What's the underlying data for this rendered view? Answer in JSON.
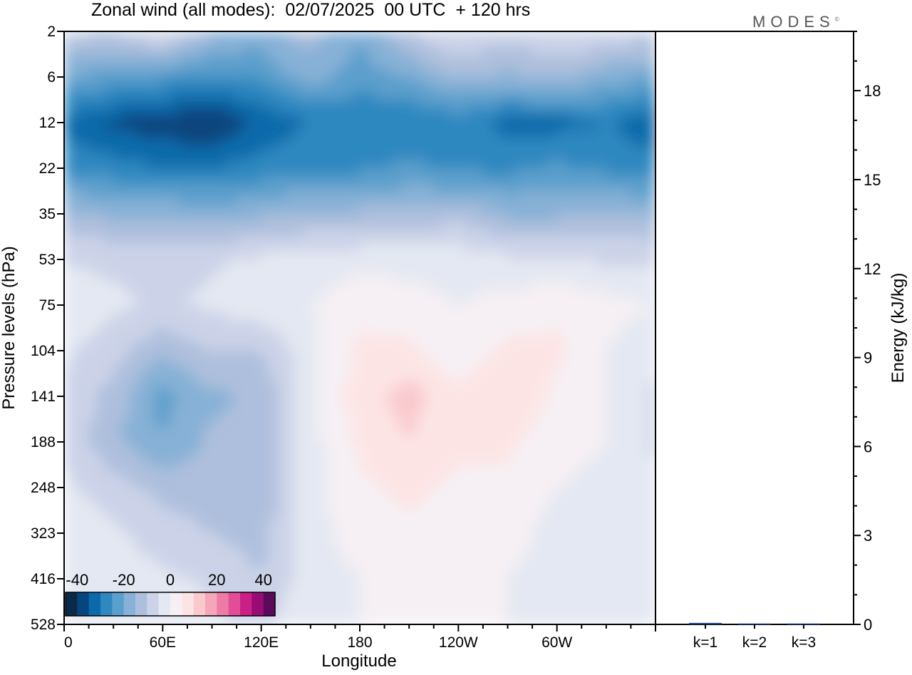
{
  "brand": "MODES",
  "chart_data": [
    {
      "type": "heatmap",
      "title": "Zonal wind (all modes):  02/07/2025  00 UTC  + 120 hrs",
      "xlabel": "Longitude",
      "ylabel": "Pressure levels (hPa)",
      "x_ticks": [
        "0",
        "60E",
        "120E",
        "180",
        "120W",
        "60W"
      ],
      "y_levels": [
        2,
        6,
        12,
        22,
        35,
        53,
        75,
        104,
        141,
        188,
        248,
        323,
        416,
        528
      ],
      "colorbar": {
        "tick_labels": [
          "-40",
          "-20",
          "0",
          "20",
          "40"
        ],
        "range": [
          -45,
          45
        ],
        "colors": [
          "#0b2a4a",
          "#08457e",
          "#0a6aaa",
          "#2f88c0",
          "#5b9fcc",
          "#87b1d6",
          "#aebfdd",
          "#ccd3e8",
          "#e4e8f2",
          "#f6f0f4",
          "#fde4e4",
          "#f9c9ce",
          "#f4a6ba",
          "#ee7ba6",
          "#e34d98",
          "#c91f86",
          "#9a0c75",
          "#5c0b5c"
        ]
      },
      "z_sample": {
        "levels_hPa": [
          2,
          6,
          12,
          22,
          35,
          53,
          75,
          104,
          141,
          188,
          248,
          323,
          416,
          528
        ],
        "longitudes_deg_east": [
          0,
          30,
          60,
          90,
          120,
          150,
          180,
          210,
          240,
          270,
          300,
          330,
          360
        ],
        "zonal_wind_m_s": [
          [
            -8,
            -10,
            -4,
            -14,
            -18,
            -12,
            -20,
            -10,
            -4,
            -8,
            -4,
            -6,
            -8
          ],
          [
            -20,
            -22,
            -24,
            -26,
            -24,
            -18,
            -22,
            -20,
            -14,
            -16,
            -14,
            -18,
            -20
          ],
          [
            -32,
            -36,
            -38,
            -40,
            -34,
            -30,
            -30,
            -30,
            -28,
            -32,
            -32,
            -30,
            -34
          ],
          [
            -26,
            -28,
            -30,
            -30,
            -28,
            -26,
            -26,
            -24,
            -26,
            -26,
            -24,
            -26,
            -28
          ],
          [
            -14,
            -16,
            -16,
            -18,
            -16,
            -14,
            -14,
            -14,
            -12,
            -16,
            -16,
            -14,
            -16
          ],
          [
            -6,
            -6,
            -6,
            -6,
            -4,
            -4,
            -2,
            -2,
            -2,
            -4,
            -4,
            -6,
            -6
          ],
          [
            0,
            -4,
            -6,
            -4,
            -2,
            0,
            4,
            2,
            0,
            2,
            4,
            2,
            0
          ],
          [
            -4,
            -8,
            -14,
            -10,
            -10,
            -2,
            6,
            6,
            2,
            6,
            6,
            0,
            -4
          ],
          [
            -6,
            -12,
            -22,
            -16,
            -14,
            -2,
            8,
            12,
            6,
            10,
            4,
            0,
            -6
          ],
          [
            -6,
            -14,
            -20,
            -14,
            -14,
            -2,
            6,
            10,
            6,
            6,
            2,
            0,
            -6
          ],
          [
            -4,
            -8,
            -12,
            -12,
            -14,
            -2,
            4,
            6,
            4,
            4,
            0,
            -2,
            -4
          ],
          [
            0,
            -4,
            -8,
            -10,
            -12,
            -2,
            2,
            4,
            2,
            2,
            -2,
            -4,
            0
          ],
          [
            0,
            -2,
            -4,
            -6,
            -10,
            -2,
            0,
            2,
            0,
            0,
            -2,
            -4,
            0
          ],
          [
            0,
            -2,
            -2,
            -4,
            -6,
            -2,
            0,
            0,
            0,
            0,
            -2,
            -2,
            0
          ]
        ]
      }
    },
    {
      "type": "bar",
      "ylabel": "Energy (kJ/kg)",
      "ylim": [
        0,
        20
      ],
      "y_ticks": [
        "0",
        "3",
        "6",
        "9",
        "12",
        "15",
        "18"
      ],
      "categories": [
        "k=1",
        "k=2",
        "k=3"
      ],
      "values": [
        0.05,
        0.03,
        0.03
      ],
      "bar_color": "#1a3a8a"
    }
  ]
}
